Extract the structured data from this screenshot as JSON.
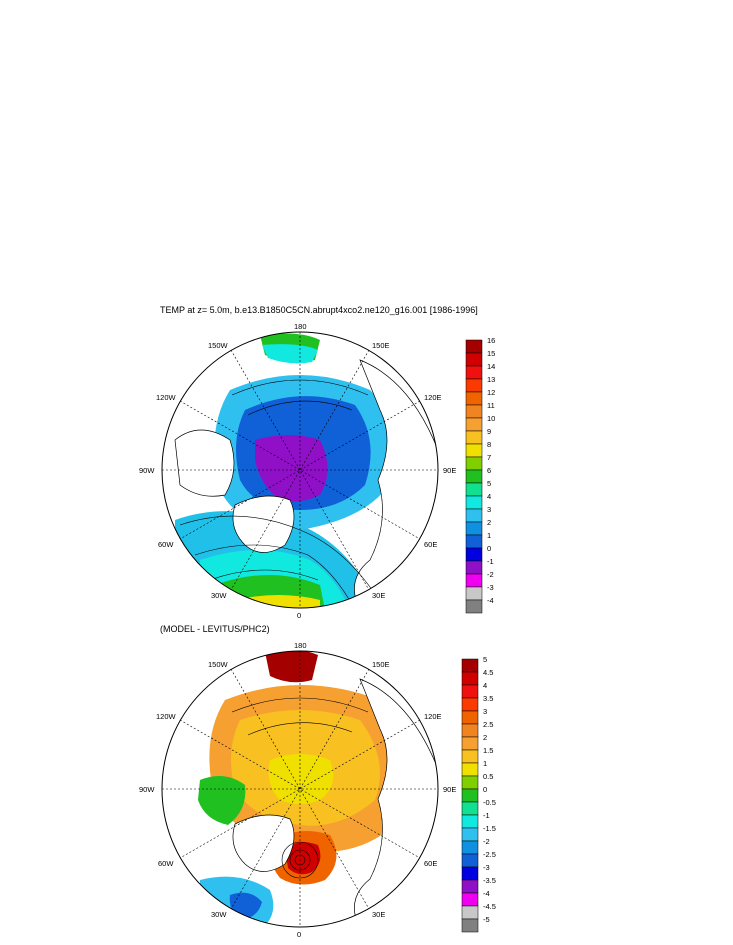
{
  "top_panel": {
    "title": "TEMP at z=   5.0m, b.e13.B1850C5CN.abrupt4xco2.ne120_g16.001 [1986-1996]",
    "longitude_labels": {
      "top": "180",
      "bottom": "0",
      "left_mid": "90W",
      "right_mid": "90E",
      "upper_left": "150W",
      "upper_left2": "120W",
      "upper_right": "150E",
      "upper_right2": "120E",
      "lower_left": "60W",
      "lower_left2": "30W",
      "lower_right": "60E",
      "lower_right2": "30E"
    },
    "colorbar": {
      "labels": [
        "16",
        "15",
        "14",
        "13",
        "12",
        "11",
        "10",
        "9",
        "8",
        "7",
        "6",
        "5",
        "4",
        "3",
        "2",
        "1",
        "0",
        "-1",
        "-2",
        "-3",
        "-4"
      ],
      "colors": [
        "#a50000",
        "#d00000",
        "#f01010",
        "#fa3a00",
        "#f06400",
        "#f08420",
        "#f5a030",
        "#f8c020",
        "#f0e000",
        "#80d000",
        "#20c020",
        "#10e090",
        "#10e8e0",
        "#30c0f0",
        "#1090e0",
        "#1060d8",
        "#0000e0",
        "#9010c8",
        "#f000f0",
        "#c8c8c8",
        "#808080"
      ]
    }
  },
  "bottom_panel": {
    "title": "(MODEL - LEVITUS/PHC2)",
    "longitude_labels": {
      "top": "180",
      "bottom": "0",
      "left_mid": "90W",
      "right_mid": "90E",
      "upper_left": "150W",
      "upper_left2": "120W",
      "upper_right": "150E",
      "upper_right2": "120E",
      "lower_left": "60W",
      "lower_left2": "30W",
      "lower_right": "60E",
      "lower_right2": "30E"
    },
    "colorbar": {
      "labels": [
        "5",
        "4.5",
        "4",
        "3.5",
        "3",
        "2.5",
        "2",
        "1.5",
        "1",
        "0.5",
        "0",
        "-0.5",
        "-1",
        "-1.5",
        "-2",
        "-2.5",
        "-3",
        "-3.5",
        "-4",
        "-4.5",
        "-5"
      ],
      "colors": [
        "#a50000",
        "#d00000",
        "#f01010",
        "#fa3a00",
        "#f06400",
        "#f08420",
        "#f5a030",
        "#f8c020",
        "#f0e000",
        "#80d000",
        "#20c020",
        "#10e090",
        "#10e8e0",
        "#30c0f0",
        "#1090e0",
        "#1060d8",
        "#0000e0",
        "#9010c8",
        "#f000f0",
        "#c8c8c8",
        "#808080"
      ]
    }
  }
}
